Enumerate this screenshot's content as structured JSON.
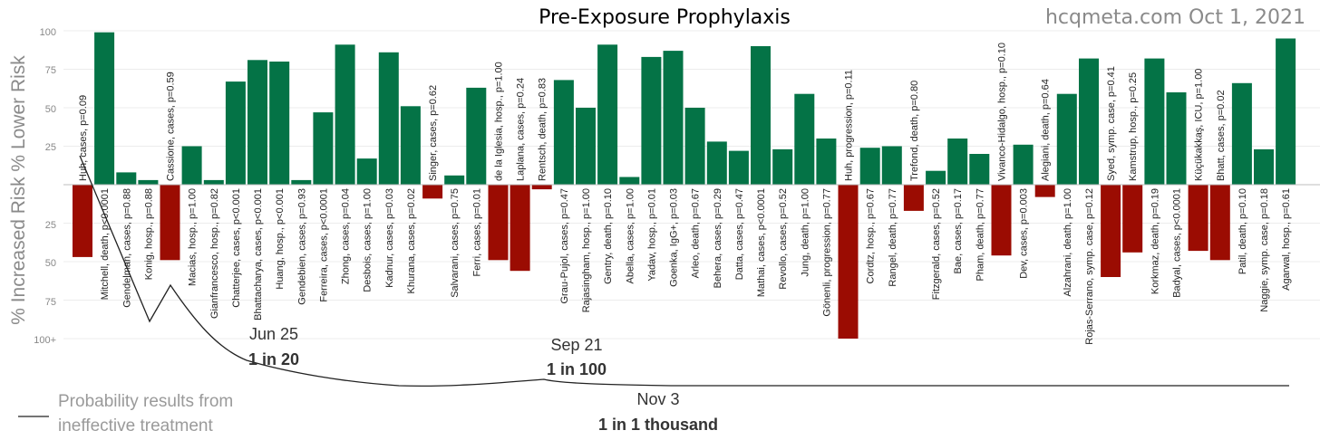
{
  "chart_data": {
    "type": "bar",
    "title": "Pre-Exposure Prophylaxis",
    "source": "hcqmeta.com Oct 1, 2021",
    "ylabel": "% Increased Risk % Lower Risk",
    "ylim": [
      -100,
      100
    ],
    "yticks": [
      "100",
      "75",
      "50",
      "25",
      "",
      "25",
      "50",
      "75",
      "100+"
    ],
    "colors": {
      "positive": "#047346",
      "negative": "#9b0c02",
      "line": "#222222"
    },
    "bars": [
      {
        "label": "Huh, cases, p=0.09",
        "value": -47
      },
      {
        "label": "Mitchell, death, p<0.0001",
        "value": 99
      },
      {
        "label": "Gendelman, cases, p=0.88",
        "value": 8
      },
      {
        "label": "Konig, hosp., p=0.88",
        "value": 3
      },
      {
        "label": "Cassione, cases, p=0.59",
        "value": -49
      },
      {
        "label": "Macias, hosp., p=1.00",
        "value": 25
      },
      {
        "label": "Gianfrancesco, hosp., p=0.82",
        "value": 3
      },
      {
        "label": "Chatterjee, cases, p<0.001",
        "value": 67
      },
      {
        "label": "Bhattacharya, cases, p<0.001",
        "value": 81
      },
      {
        "label": "Huang, hosp., p<0.001",
        "value": 80
      },
      {
        "label": "Gendebien, cases, p=0.93",
        "value": 3
      },
      {
        "label": "Ferreira, cases, p<0.0001",
        "value": 47
      },
      {
        "label": "Zhong, cases, p=0.04",
        "value": 91
      },
      {
        "label": "Desbois, cases, p=1.00",
        "value": 17
      },
      {
        "label": "Kadnur, cases, p=0.03",
        "value": 86
      },
      {
        "label": "Khurana, cases, p=0.02",
        "value": 51
      },
      {
        "label": "Singer, cases, p=0.62",
        "value": -9
      },
      {
        "label": "Salvarani, cases, p=0.75",
        "value": 6
      },
      {
        "label": "Ferri, cases, p=0.01",
        "value": 63
      },
      {
        "label": "de la Iglesia, hosp., p=1.00",
        "value": -49
      },
      {
        "label": "Laplana, cases, p=0.24",
        "value": -56
      },
      {
        "label": "Rentsch, death, p=0.83",
        "value": -3
      },
      {
        "label": "Grau-Pujol, cases, p=0.47",
        "value": 68
      },
      {
        "label": "Rajasingham, hosp., p=1.00",
        "value": 50
      },
      {
        "label": "Gentry, death, p=0.10",
        "value": 91
      },
      {
        "label": "Abella, cases, p=1.00",
        "value": 5
      },
      {
        "label": "Yadav, hosp., p=0.01",
        "value": 83
      },
      {
        "label": "Goenka, IgG+, p=0.03",
        "value": 87
      },
      {
        "label": "Arleo, death, p=0.67",
        "value": 50
      },
      {
        "label": "Behera, cases, p=0.29",
        "value": 28
      },
      {
        "label": "Datta, cases, p=0.47",
        "value": 22
      },
      {
        "label": "Mathai, cases, p<0.0001",
        "value": 90
      },
      {
        "label": "Revollo, cases, p=0.52",
        "value": 23
      },
      {
        "label": "Jung, death, p=1.00",
        "value": 59
      },
      {
        "label": "Gönenli, progression, p=0.77",
        "value": 30
      },
      {
        "label": "Huh, progression, p=0.11",
        "value": -100
      },
      {
        "label": "Cordtz, hosp., p=0.67",
        "value": 24
      },
      {
        "label": "Rangel, death, p=0.77",
        "value": 25
      },
      {
        "label": "Trefond, death, p=0.80",
        "value": -17
      },
      {
        "label": "Fitzgerald, cases, p=0.52",
        "value": 9
      },
      {
        "label": "Bae, cases, p=0.17",
        "value": 30
      },
      {
        "label": "Pham, death, p=0.77",
        "value": 20
      },
      {
        "label": "Vivanco-Hidalgo, hosp., p=0.10",
        "value": -46
      },
      {
        "label": "Dev, cases, p=0.003",
        "value": 26
      },
      {
        "label": "Alegiani, death, p=0.64",
        "value": -8
      },
      {
        "label": "Alzahrani, death, p=1.00",
        "value": 59
      },
      {
        "label": "Rojas-Serrano, symp. case, p=0.12",
        "value": 82
      },
      {
        "label": "Syed, symp. case, p=0.41",
        "value": -60
      },
      {
        "label": "Kamstrup, hosp., p=0.25",
        "value": -44
      },
      {
        "label": "Korkmaz, death, p=0.19",
        "value": 82
      },
      {
        "label": "Badyal, cases, p<0.0001",
        "value": 60
      },
      {
        "label": "Küçükakkaş, ICU, p=1.00",
        "value": -43
      },
      {
        "label": "Bhatt, cases, p=0.02",
        "value": -49
      },
      {
        "label": "Patil, death, p=0.10",
        "value": 66
      },
      {
        "label": "Naggie, symp. case, p=0.18",
        "value": 23
      },
      {
        "label": "Agarwal, hosp., p=0.61",
        "value": 95
      }
    ],
    "probability_curve": {
      "legend": [
        "Probability results from",
        "ineffective treatment"
      ],
      "annotations": [
        {
          "date": "Jun 25",
          "text": "1 in 20"
        },
        {
          "date": "Sep 21",
          "text": "1 in 100"
        },
        {
          "date": "Nov 3",
          "text": "1 in 1 thousand"
        }
      ]
    }
  }
}
